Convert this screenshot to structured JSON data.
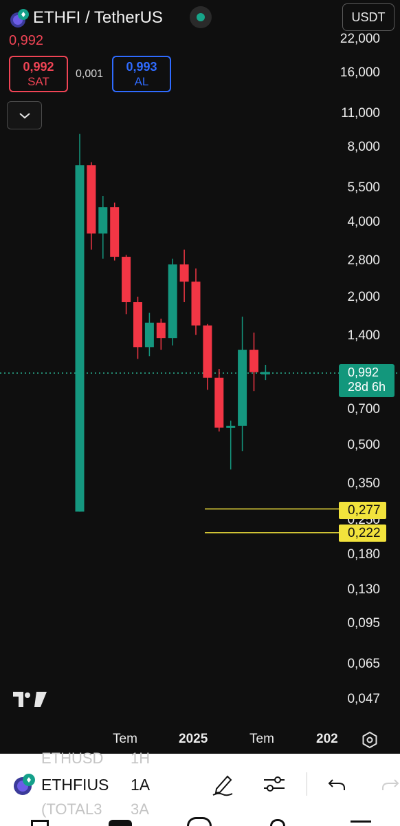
{
  "header": {
    "title": "ETHFI / TetherUS",
    "currency": "USDT",
    "status_color": "#17a589",
    "last_price": "0,992"
  },
  "orders": {
    "sell_price": "0,992",
    "sell_label": "SAT",
    "spread": "0,001",
    "buy_price": "0,993",
    "buy_label": "AL"
  },
  "colors": {
    "up": "#15977f",
    "down": "#f23645",
    "sell": "#f04455",
    "buy": "#2f6bff",
    "level_line": "#f2e33c",
    "price_tag": "#13977c"
  },
  "price_axis": {
    "scale": "log",
    "labels": [
      "22,000",
      "16,000",
      "11,000",
      "8,000",
      "5,500",
      "4,000",
      "2,800",
      "2,000",
      "1,400",
      "0,700",
      "0,500",
      "0,350",
      "0,250",
      "0,180",
      "0,130",
      "0,095",
      "0,065",
      "0,047"
    ]
  },
  "time_axis": {
    "labels": [
      "Tem",
      "2025",
      "Tem",
      "202"
    ]
  },
  "current_price": {
    "value": "0,992",
    "countdown": "28d 6h"
  },
  "levels": [
    {
      "value": "0,277"
    },
    {
      "value": "0,222"
    }
  ],
  "chart_data": {
    "type": "candlestick",
    "interval": "1A",
    "scale": "log",
    "ylim": [
      0.042,
      24.5
    ],
    "candles": [
      {
        "o": 0.27,
        "h": 9.1,
        "l": 0.27,
        "c": 6.8
      },
      {
        "o": 6.8,
        "h": 7.0,
        "l": 3.1,
        "c": 3.6
      },
      {
        "o": 3.6,
        "h": 5.1,
        "l": 2.85,
        "c": 4.6
      },
      {
        "o": 4.6,
        "h": 4.8,
        "l": 2.8,
        "c": 2.9
      },
      {
        "o": 2.9,
        "h": 2.95,
        "l": 1.7,
        "c": 1.9
      },
      {
        "o": 1.9,
        "h": 2.0,
        "l": 1.12,
        "c": 1.25
      },
      {
        "o": 1.25,
        "h": 1.72,
        "l": 1.15,
        "c": 1.57
      },
      {
        "o": 1.57,
        "h": 1.63,
        "l": 1.22,
        "c": 1.36
      },
      {
        "o": 1.36,
        "h": 2.85,
        "l": 1.27,
        "c": 2.7
      },
      {
        "o": 2.7,
        "h": 3.1,
        "l": 1.9,
        "c": 2.3
      },
      {
        "o": 2.3,
        "h": 2.6,
        "l": 1.4,
        "c": 1.53
      },
      {
        "o": 1.53,
        "h": 1.55,
        "l": 0.84,
        "c": 0.94
      },
      {
        "o": 0.94,
        "h": 1.02,
        "l": 0.57,
        "c": 0.59
      },
      {
        "o": 0.59,
        "h": 0.63,
        "l": 0.4,
        "c": 0.6
      },
      {
        "o": 0.6,
        "h": 1.66,
        "l": 0.475,
        "c": 1.22
      },
      {
        "o": 1.22,
        "h": 1.43,
        "l": 0.83,
        "c": 0.99
      },
      {
        "o": 0.97,
        "h": 1.06,
        "l": 0.92,
        "c": 0.992
      }
    ]
  },
  "bottom_bar": {
    "symbol": "ETHFIUS",
    "interval": "1A",
    "ghost_symbol_above": "ETHUSD",
    "ghost_interval_above": "1H",
    "ghost_symbol_below": "(TOTAL3",
    "ghost_interval_below": "3A"
  }
}
